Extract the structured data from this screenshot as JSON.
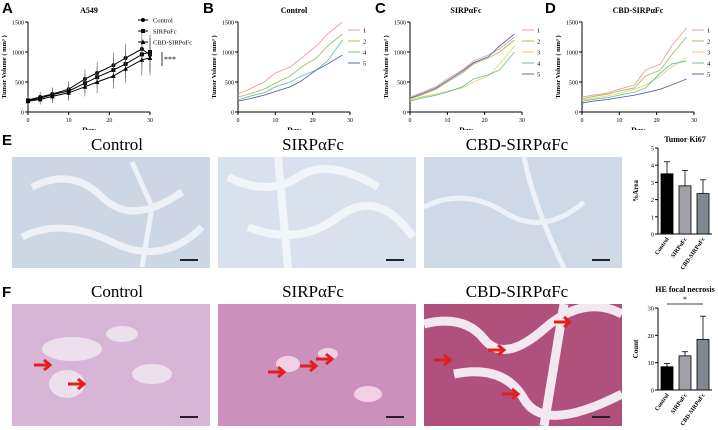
{
  "panels": {
    "A": {
      "letter": "A",
      "title": "A549",
      "ylabel": "Tumor Volume ( mm³ )",
      "xlabel": "Day",
      "sig": "***",
      "legend": [
        "Control",
        "SIRPαFc",
        "CBD-SIRPαFc"
      ]
    },
    "B": {
      "letter": "B",
      "title": "Control",
      "ylabel": "Tumor Volume ( mm³ )",
      "xlabel": "Day",
      "legend": [
        "1",
        "2",
        "4",
        "5"
      ]
    },
    "C": {
      "letter": "C",
      "title": "SIRPαFc",
      "ylabel": "Tumor Volume ( mm³ )",
      "xlabel": "Day",
      "legend": [
        "1",
        "2",
        "3",
        "4",
        "5"
      ]
    },
    "D": {
      "letter": "D",
      "title": "CBD-SIRPαFc",
      "ylabel": "Tumor Volume ( mm³ )",
      "xlabel": "Day",
      "legend": [
        "1",
        "2",
        "3",
        "4",
        "5"
      ]
    },
    "E": {
      "letter": "E",
      "images": [
        "Control",
        "SIRPαFc",
        "CBD-SIRPαFc"
      ],
      "bar_title": "Tumor Ki67",
      "bar_ylabel": "%Area"
    },
    "F": {
      "letter": "F",
      "images": [
        "Control",
        "SIRPαFc",
        "CBD-SIRPαFc"
      ],
      "bar_title": "HE focal necrosis",
      "bar_ylabel": "Count",
      "sig": "*"
    }
  },
  "colors": {
    "c1": "#e8a0a0",
    "c2": "#a0c060",
    "c3": "#e8d070",
    "c4": "#70c0a0",
    "c5": "#6060b0",
    "ihc": "#dfe6ee",
    "he": "#d8b8d8",
    "arrow": "#e02020"
  },
  "chart_data": [
    {
      "type": "line",
      "panel": "A",
      "title": "A549",
      "xlabel": "Day",
      "ylabel": "Tumor Volume ( mm³ )",
      "x": [
        0,
        3,
        6,
        10,
        14,
        17,
        21,
        24,
        28,
        30
      ],
      "xlim": [
        0,
        30
      ],
      "xticks": [
        0,
        10,
        20,
        30
      ],
      "ylim": [
        0,
        1500
      ],
      "yticks": [
        0,
        500,
        1000,
        1500
      ],
      "series": [
        {
          "name": "Control",
          "values": [
            200,
            250,
            300,
            380,
            550,
            650,
            780,
            900,
            1050,
            950
          ]
        },
        {
          "name": "SIRPαFc",
          "values": [
            190,
            230,
            290,
            350,
            480,
            580,
            700,
            800,
            960,
            1000
          ]
        },
        {
          "name": "CBD-SIRPαFc",
          "values": [
            180,
            210,
            260,
            320,
            420,
            500,
            600,
            720,
            870,
            900
          ]
        }
      ]
    },
    {
      "type": "line",
      "panel": "B",
      "title": "Control",
      "xlabel": "Day",
      "ylabel": "Tumor Volume ( mm³ )",
      "x": [
        0,
        3,
        7,
        10,
        14,
        17,
        21,
        24,
        28
      ],
      "xlim": [
        0,
        30
      ],
      "xticks": [
        0,
        10,
        20,
        30
      ],
      "ylim": [
        0,
        1500
      ],
      "yticks": [
        0,
        500,
        1000,
        1500
      ],
      "series": [
        {
          "name": "1",
          "values": [
            300,
            380,
            500,
            650,
            750,
            900,
            1100,
            1300,
            1500
          ]
        },
        {
          "name": "2",
          "values": [
            250,
            300,
            380,
            480,
            600,
            750,
            900,
            1100,
            1300
          ]
        },
        {
          "name": "4",
          "values": [
            200,
            260,
            320,
            420,
            500,
            600,
            700,
            850,
            1200
          ]
        },
        {
          "name": "5",
          "values": [
            180,
            220,
            280,
            340,
            420,
            520,
            700,
            800,
            950
          ]
        }
      ]
    },
    {
      "type": "line",
      "panel": "C",
      "title": "SIRPαFc",
      "xlabel": "Day",
      "ylabel": "Tumor Volume ( mm³ )",
      "x": [
        0,
        3,
        7,
        10,
        14,
        17,
        21,
        24,
        28
      ],
      "xlim": [
        0,
        30
      ],
      "xticks": [
        0,
        10,
        20,
        30
      ],
      "ylim": [
        0,
        1500
      ],
      "yticks": [
        0,
        500,
        1000,
        1500
      ],
      "series": [
        {
          "name": "1",
          "values": [
            250,
            320,
            420,
            550,
            700,
            850,
            950,
            1050,
            1250
          ]
        },
        {
          "name": "2",
          "values": [
            220,
            280,
            380,
            500,
            650,
            800,
            900,
            1000,
            1200
          ]
        },
        {
          "name": "3",
          "values": [
            200,
            250,
            300,
            350,
            400,
            500,
            600,
            800,
            1100
          ]
        },
        {
          "name": "4",
          "values": [
            180,
            230,
            280,
            330,
            420,
            550,
            620,
            700,
            1000
          ]
        },
        {
          "name": "5",
          "values": [
            230,
            300,
            400,
            520,
            680,
            820,
            920,
            1100,
            1300
          ]
        }
      ]
    },
    {
      "type": "line",
      "panel": "D",
      "title": "CBD-SIRPαFc",
      "xlabel": "Day",
      "ylabel": "Tumor Volume ( mm³ )",
      "x": [
        0,
        3,
        7,
        10,
        14,
        17,
        21,
        24,
        28
      ],
      "xlim": [
        0,
        30
      ],
      "xticks": [
        0,
        10,
        20,
        30
      ],
      "ylim": [
        0,
        1500
      ],
      "yticks": [
        0,
        500,
        1000,
        1500
      ],
      "series": [
        {
          "name": "1",
          "values": [
            250,
            280,
            320,
            380,
            450,
            700,
            800,
            1100,
            1400
          ]
        },
        {
          "name": "2",
          "values": [
            220,
            260,
            300,
            350,
            400,
            600,
            700,
            950,
            1250
          ]
        },
        {
          "name": "3",
          "values": [
            200,
            230,
            270,
            310,
            380,
            450,
            600,
            750,
            900
          ]
        },
        {
          "name": "4",
          "values": [
            180,
            210,
            240,
            280,
            330,
            400,
            650,
            800,
            850
          ]
        },
        {
          "name": "5",
          "values": [
            150,
            180,
            210,
            240,
            280,
            320,
            380,
            450,
            550
          ]
        }
      ]
    },
    {
      "type": "bar",
      "panel": "E",
      "title": "Tumor Ki67",
      "ylabel": "%Area",
      "categories": [
        "Control",
        "SIRPαFc",
        "CBD-SIRPαFc"
      ],
      "values": [
        3.5,
        2.8,
        2.35
      ],
      "errors": [
        0.7,
        0.9,
        0.8
      ],
      "ylim": [
        0,
        5
      ],
      "yticks": [
        0,
        1,
        2,
        3,
        4,
        5
      ]
    },
    {
      "type": "bar",
      "panel": "F",
      "title": "HE focal necrosis",
      "ylabel": "Count",
      "categories": [
        "Control",
        "SIRPαFc",
        "CBD-SIRPαFc"
      ],
      "values": [
        8.5,
        12.5,
        18.5
      ],
      "errors": [
        1.2,
        1.5,
        8.5
      ],
      "ylim": [
        0,
        30
      ],
      "yticks": [
        0,
        10,
        20,
        30
      ]
    }
  ]
}
